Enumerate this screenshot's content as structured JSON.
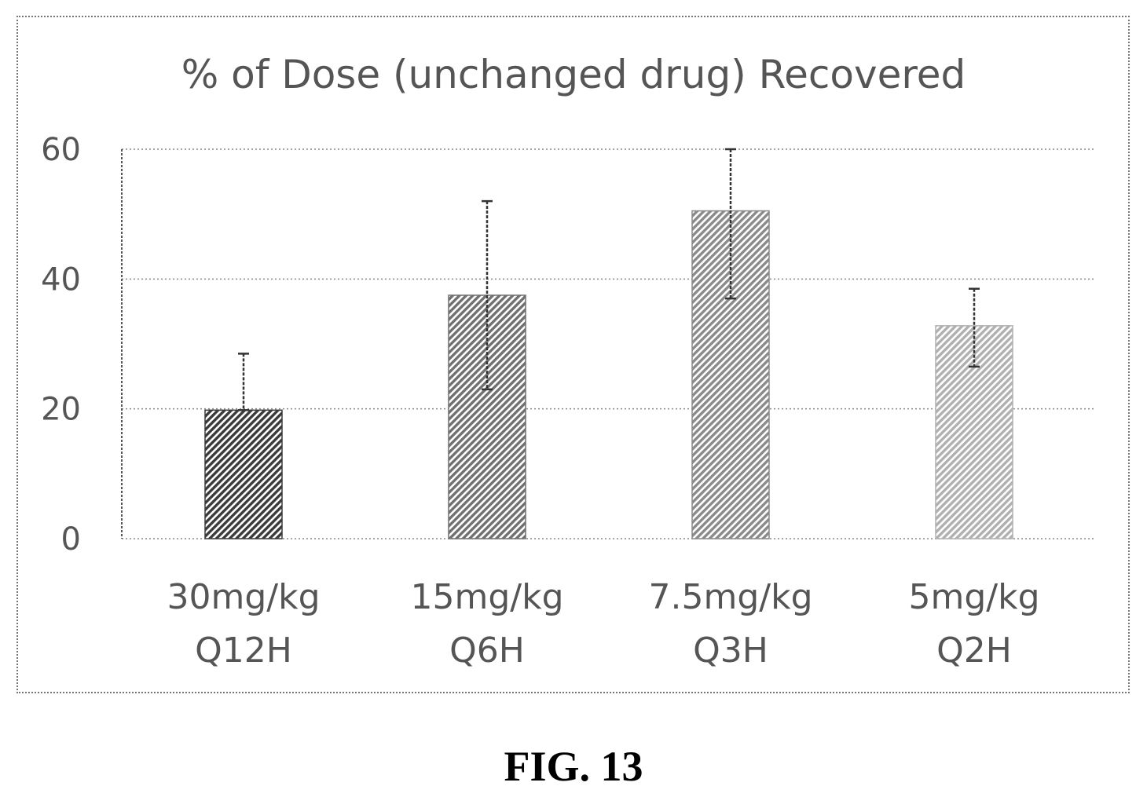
{
  "figure": {
    "caption": "FIG. 13"
  },
  "chart_data": {
    "type": "bar",
    "title": "% of Dose (unchanged drug) Recovered",
    "xlabel": "",
    "ylabel": "",
    "ylim": [
      0,
      60
    ],
    "yticks": [
      0,
      20,
      40,
      60
    ],
    "grid": true,
    "categories": [
      {
        "line1": "30mg/kg",
        "line2": "Q12H"
      },
      {
        "line1": "15mg/kg",
        "line2": "Q6H"
      },
      {
        "line1": "7.5mg/kg",
        "line2": "Q3H"
      },
      {
        "line1": "5mg/kg",
        "line2": "Q2H"
      }
    ],
    "values": [
      19.8,
      37.5,
      50.5,
      32.8
    ],
    "error_low": [
      19.8,
      23,
      37,
      26.5
    ],
    "error_high": [
      28.5,
      52,
      60,
      38.5
    ],
    "colors": [
      "#3a3a3a",
      "#707070",
      "#8a8a8a",
      "#b0b0b0"
    ]
  }
}
